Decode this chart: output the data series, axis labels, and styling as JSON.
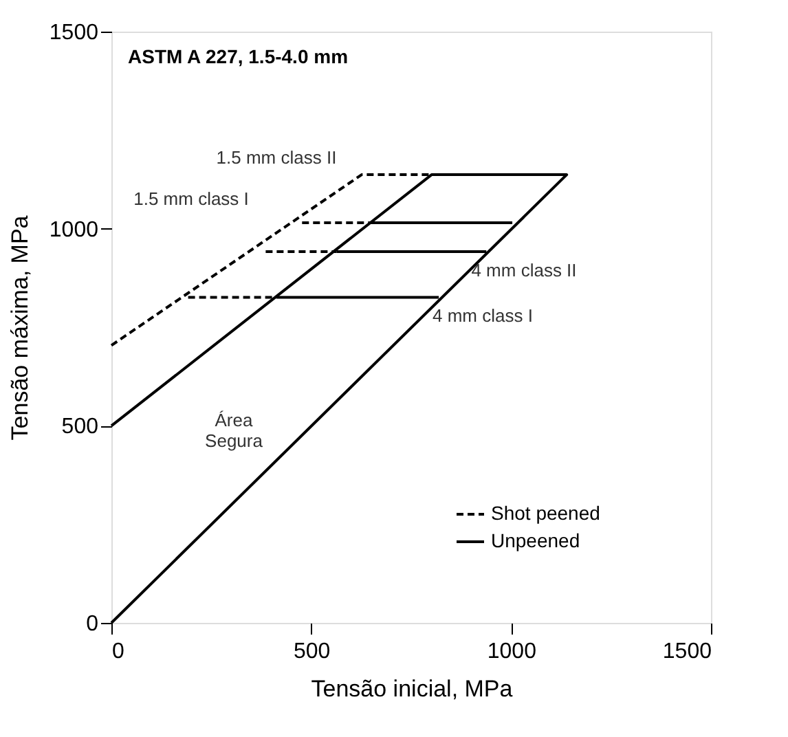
{
  "chart_data": {
    "type": "line",
    "title": "ASTM A 227, 1.5-4.0 mm",
    "xlabel": "Tensão inicial, MPa",
    "ylabel": "Tensão máxima, MPa",
    "xlim": [
      0,
      1500
    ],
    "ylim": [
      0,
      1500
    ],
    "xticks": [
      0,
      500,
      1000,
      1500
    ],
    "yticks": [
      0,
      500,
      1000,
      1500
    ],
    "grid": false,
    "legend": "bottom right",
    "marker": "none",
    "series": [
      {
        "name": "Shot peened",
        "color": "#000000",
        "line_style": "dashed",
        "x": [
          0,
          626,
          801,
          null,
          477,
          648,
          null,
          386,
          563,
          null,
          192,
          414
        ],
        "values": [
          704,
          1137,
          1137,
          null,
          1015,
          1015,
          null,
          942,
          942,
          null,
          826,
          826
        ]
      },
      {
        "name": "Unpeened",
        "color": "#000000",
        "line_style": "solid",
        "x": [
          0,
          1139,
          801,
          0,
          null,
          648,
          1003,
          null,
          563,
          938,
          null,
          414,
          819
        ],
        "values": [
          0,
          1137,
          1137,
          500,
          null,
          1015,
          1015,
          null,
          942,
          942,
          null,
          826,
          826
        ]
      }
    ],
    "annotations": [
      "1.5 mm class II",
      "1.5 mm class I",
      "4 mm class II",
      "4 mm class I",
      "Área\nSegura"
    ]
  }
}
